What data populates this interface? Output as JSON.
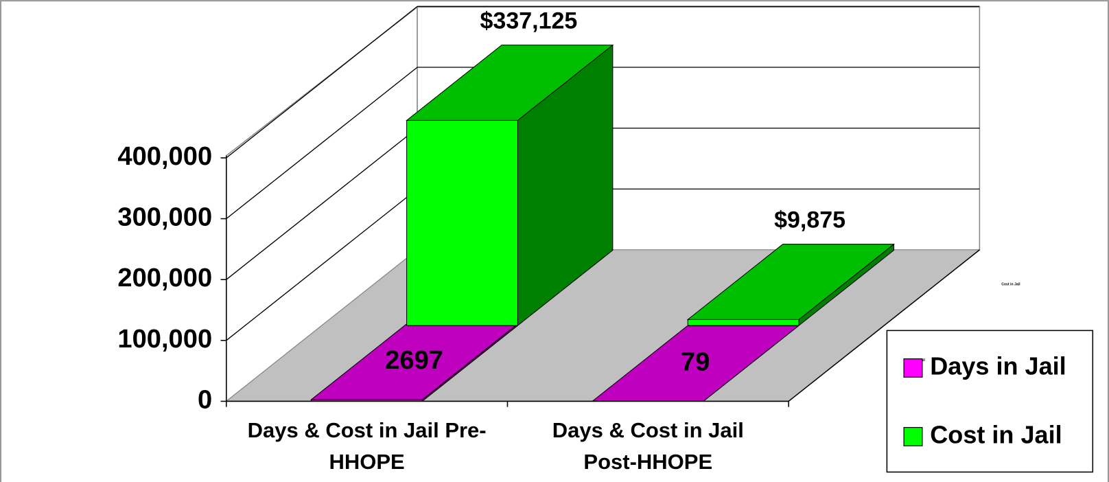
{
  "chart_data": {
    "type": "bar3d",
    "categories": [
      "Days & Cost in Jail Pre-HHOPE",
      "Days & Cost in Jail Post-HHOPE"
    ],
    "series": [
      {
        "name": "Days in Jail",
        "color": "#ff00ff",
        "values": [
          2697,
          79
        ]
      },
      {
        "name": "Cost in Jail",
        "color": "#00ff00",
        "values": [
          337125,
          9875
        ],
        "value_labels": [
          "$337,125",
          "$9,875"
        ]
      }
    ],
    "ylim": [
      0,
      400000
    ],
    "yticks": [
      {
        "value": 0,
        "label": "0"
      },
      {
        "value": 100000,
        "label": "100,000"
      },
      {
        "value": 200000,
        "label": "200,000"
      },
      {
        "value": 300000,
        "label": "300,000"
      },
      {
        "value": 400000,
        "label": "400,000"
      }
    ],
    "grid": true,
    "legend": "right"
  }
}
